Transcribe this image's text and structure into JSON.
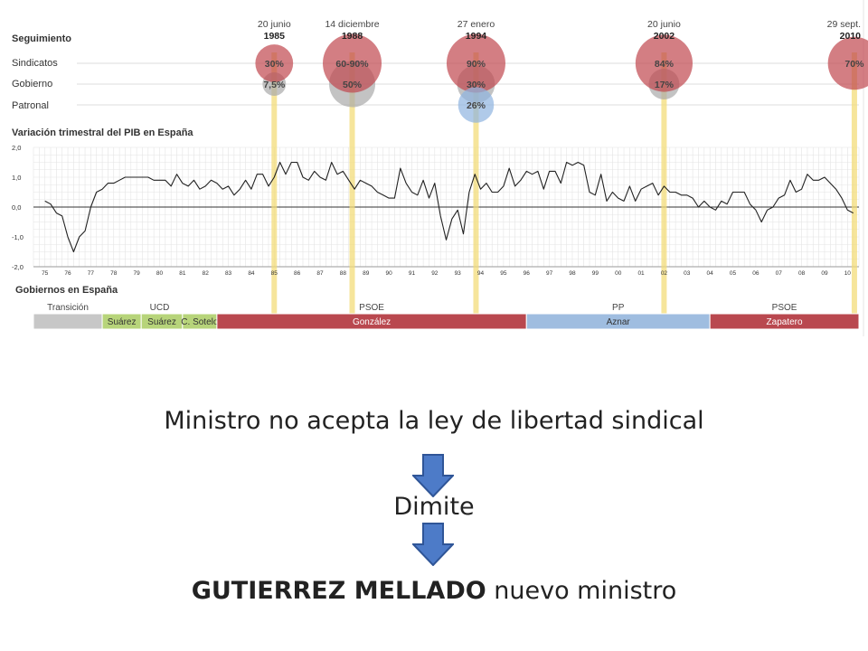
{
  "chart_data": {
    "type": "line",
    "tracking": {
      "heading": "Seguimiento",
      "row_labels": [
        "Sindicatos",
        "Gobierno",
        "Patronal"
      ],
      "events": [
        {
          "date": "20 junio",
          "year": "1985",
          "x": 85.0,
          "sindicatos": "30%",
          "gobierno": "7,5%",
          "patronal": ""
        },
        {
          "date": "14 diciembre",
          "year": "1988",
          "x": 88.4,
          "sindicatos": "60-90%",
          "gobierno": "50%",
          "patronal": ""
        },
        {
          "date": "27 enero",
          "year": "1994",
          "x": 93.8,
          "sindicatos": "90%",
          "gobierno": "30%",
          "patronal": "26%"
        },
        {
          "date": "20 junio",
          "year": "2002",
          "x": 102.0,
          "sindicatos": "84%",
          "gobierno": "17%",
          "patronal": ""
        },
        {
          "date": "29 sept.",
          "year": "2010",
          "x": 110.3,
          "sindicatos": "70%",
          "gobierno": "",
          "patronal": ""
        }
      ]
    },
    "title": "Variación trimestral del PIB en España",
    "ylim": [
      -2.0,
      2.0
    ],
    "y_ticks": [
      "2,0",
      "1,0",
      "0,0",
      "-1,0",
      "-2,0"
    ],
    "y_tick_values": [
      2,
      1,
      0,
      -1,
      -2
    ],
    "xlim": [
      74.5,
      110.5
    ],
    "x_ticks": [
      "75",
      "76",
      "77",
      "78",
      "79",
      "80",
      "81",
      "82",
      "83",
      "84",
      "85",
      "86",
      "87",
      "88",
      "89",
      "90",
      "91",
      "92",
      "93",
      "94",
      "95",
      "96",
      "97",
      "98",
      "99",
      "00",
      "01",
      "02",
      "03",
      "04",
      "05",
      "06",
      "07",
      "08",
      "09",
      "10"
    ],
    "series": [
      {
        "values": [
          [
            75.0,
            0.2
          ],
          [
            75.25,
            0.1
          ],
          [
            75.5,
            -0.2
          ],
          [
            75.75,
            -0.3
          ],
          [
            76.0,
            -1.0
          ],
          [
            76.25,
            -1.5
          ],
          [
            76.5,
            -1.0
          ],
          [
            76.75,
            -0.8
          ],
          [
            77.0,
            0.0
          ],
          [
            77.25,
            0.5
          ],
          [
            77.5,
            0.6
          ],
          [
            77.75,
            0.8
          ],
          [
            78.0,
            0.8
          ],
          [
            78.25,
            0.9
          ],
          [
            78.5,
            1.0
          ],
          [
            78.75,
            1.0
          ],
          [
            79.0,
            1.0
          ],
          [
            79.25,
            1.0
          ],
          [
            79.5,
            1.0
          ],
          [
            79.75,
            0.9
          ],
          [
            80.0,
            0.9
          ],
          [
            80.25,
            0.9
          ],
          [
            80.5,
            0.7
          ],
          [
            80.75,
            1.1
          ],
          [
            81.0,
            0.8
          ],
          [
            81.25,
            0.7
          ],
          [
            81.5,
            0.9
          ],
          [
            81.75,
            0.6
          ],
          [
            82.0,
            0.7
          ],
          [
            82.25,
            0.9
          ],
          [
            82.5,
            0.8
          ],
          [
            82.75,
            0.6
          ],
          [
            83.0,
            0.7
          ],
          [
            83.25,
            0.4
          ],
          [
            83.5,
            0.6
          ],
          [
            83.75,
            0.9
          ],
          [
            84.0,
            0.6
          ],
          [
            84.25,
            1.1
          ],
          [
            84.5,
            1.1
          ],
          [
            84.75,
            0.7
          ],
          [
            85.0,
            1.0
          ],
          [
            85.25,
            1.5
          ],
          [
            85.5,
            1.1
          ],
          [
            85.75,
            1.5
          ],
          [
            86.0,
            1.5
          ],
          [
            86.25,
            1.0
          ],
          [
            86.5,
            0.9
          ],
          [
            86.75,
            1.2
          ],
          [
            87.0,
            1.0
          ],
          [
            87.25,
            0.9
          ],
          [
            87.5,
            1.5
          ],
          [
            87.75,
            1.1
          ],
          [
            88.0,
            1.2
          ],
          [
            88.25,
            0.9
          ],
          [
            88.5,
            0.6
          ],
          [
            88.75,
            0.9
          ],
          [
            89.0,
            0.8
          ],
          [
            89.25,
            0.7
          ],
          [
            89.5,
            0.5
          ],
          [
            89.75,
            0.4
          ],
          [
            90.0,
            0.3
          ],
          [
            90.25,
            0.3
          ],
          [
            90.5,
            1.3
          ],
          [
            90.75,
            0.8
          ],
          [
            91.0,
            0.5
          ],
          [
            91.25,
            0.4
          ],
          [
            91.5,
            0.9
          ],
          [
            91.75,
            0.3
          ],
          [
            92.0,
            0.8
          ],
          [
            92.25,
            -0.3
          ],
          [
            92.5,
            -1.1
          ],
          [
            92.75,
            -0.4
          ],
          [
            93.0,
            -0.1
          ],
          [
            93.25,
            -0.9
          ],
          [
            93.5,
            0.5
          ],
          [
            93.75,
            1.1
          ],
          [
            94.0,
            0.6
          ],
          [
            94.25,
            0.8
          ],
          [
            94.5,
            0.5
          ],
          [
            94.75,
            0.5
          ],
          [
            95.0,
            0.7
          ],
          [
            95.25,
            1.3
          ],
          [
            95.5,
            0.7
          ],
          [
            95.75,
            0.9
          ],
          [
            96.0,
            1.2
          ],
          [
            96.25,
            1.1
          ],
          [
            96.5,
            1.2
          ],
          [
            96.75,
            0.6
          ],
          [
            97.0,
            1.2
          ],
          [
            97.25,
            1.2
          ],
          [
            97.5,
            0.8
          ],
          [
            97.75,
            1.5
          ],
          [
            98.0,
            1.4
          ],
          [
            98.25,
            1.5
          ],
          [
            98.5,
            1.4
          ],
          [
            98.75,
            0.5
          ],
          [
            99.0,
            0.4
          ],
          [
            99.25,
            1.1
          ],
          [
            99.5,
            0.2
          ],
          [
            99.75,
            0.5
          ],
          [
            100.0,
            0.3
          ],
          [
            100.25,
            0.2
          ],
          [
            100.5,
            0.7
          ],
          [
            100.75,
            0.2
          ],
          [
            101.0,
            0.6
          ],
          [
            101.25,
            0.7
          ],
          [
            101.5,
            0.8
          ],
          [
            101.75,
            0.4
          ],
          [
            102.0,
            0.7
          ],
          [
            102.25,
            0.5
          ],
          [
            102.5,
            0.5
          ],
          [
            102.75,
            0.4
          ],
          [
            103.0,
            0.4
          ],
          [
            103.25,
            0.3
          ],
          [
            103.5,
            0.0
          ],
          [
            103.75,
            0.2
          ],
          [
            104.0,
            0.0
          ],
          [
            104.25,
            -0.1
          ],
          [
            104.5,
            0.2
          ],
          [
            104.75,
            0.1
          ],
          [
            105.0,
            0.5
          ],
          [
            105.25,
            0.5
          ],
          [
            105.5,
            0.5
          ],
          [
            105.75,
            0.1
          ],
          [
            106.0,
            -0.1
          ],
          [
            106.25,
            -0.5
          ],
          [
            106.5,
            -0.1
          ],
          [
            106.75,
            0.0
          ],
          [
            107.0,
            0.3
          ],
          [
            107.25,
            0.4
          ],
          [
            107.5,
            0.9
          ],
          [
            107.75,
            0.5
          ],
          [
            108.0,
            0.6
          ],
          [
            108.25,
            1.1
          ],
          [
            108.5,
            0.9
          ],
          [
            108.75,
            0.9
          ],
          [
            109.0,
            1.0
          ],
          [
            109.25,
            0.8
          ],
          [
            109.5,
            0.6
          ],
          [
            109.75,
            0.3
          ],
          [
            110.0,
            -0.1
          ],
          [
            110.25,
            -0.2
          ]
        ]
      }
    ],
    "governments": {
      "heading": "Gobiernos en España",
      "parties": [
        {
          "name": "Transición",
          "start": 74.5,
          "end": 77.5
        },
        {
          "name": "UCD",
          "start": 77.5,
          "end": 82.5
        },
        {
          "name": "PSOE",
          "start": 82.5,
          "end": 96.0
        },
        {
          "name": "PP",
          "start": 96.0,
          "end": 104.0
        },
        {
          "name": "PSOE",
          "start": 104.0,
          "end": 110.5
        }
      ],
      "terms": [
        {
          "name": "",
          "start": 74.5,
          "end": 77.5,
          "color": "#c7c7c7"
        },
        {
          "name": "Suárez",
          "start": 77.5,
          "end": 79.2,
          "color": "#b7d47a"
        },
        {
          "name": "Suárez",
          "start": 79.2,
          "end": 81.0,
          "color": "#b7d47a"
        },
        {
          "name": "C. Sotelo",
          "start": 81.0,
          "end": 82.5,
          "color": "#b7d47a"
        },
        {
          "name": "González",
          "start": 82.5,
          "end": 96.0,
          "color": "#b9484f"
        },
        {
          "name": "Aznar",
          "start": 96.0,
          "end": 104.0,
          "color": "#9fbde0"
        },
        {
          "name": "Zapatero",
          "start": 104.0,
          "end": 110.5,
          "color": "#b9484f"
        }
      ]
    },
    "colors": {
      "sindicatos_bubble": "#c0474f",
      "gobierno_bubble": "#a9a9a9",
      "patronal_bubble": "#8fb4e0",
      "event_line": "#f3dc7a",
      "line": "#222222"
    }
  },
  "slide": {
    "line1": "Ministro no acepta la ley de libertad sindical",
    "line2": "Dimite",
    "line3_bold": "GUTIERREZ MELLADO",
    "line3_rest": " nuevo ministro"
  }
}
